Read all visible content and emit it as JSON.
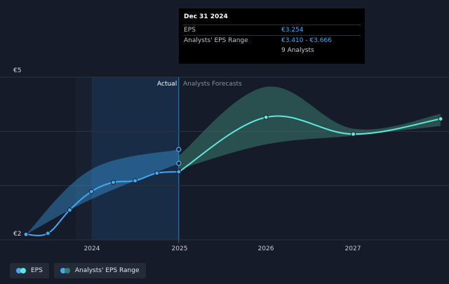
{
  "chart_data": {
    "type": "line",
    "y_tick_labels": [
      "€5",
      "€2"
    ],
    "x_ticks": [
      {
        "label": "2024",
        "value": 2024.0
      },
      {
        "label": "2025",
        "value": 2025.0
      },
      {
        "label": "2026",
        "value": 2026.0
      },
      {
        "label": "2027",
        "value": 2027.0
      }
    ],
    "xlim": [
      2023.0,
      2028.0
    ],
    "ylim": [
      2.0,
      5.0
    ],
    "zones": {
      "actual_label": "Actual",
      "forecast_label": "Analysts Forecasts",
      "divider_x": 2025.0
    },
    "series": [
      {
        "name": "EPS",
        "color": "#3fa9f5",
        "points": [
          {
            "x": 2023.25,
            "y": 2.1
          },
          {
            "x": 2023.5,
            "y": 2.12
          },
          {
            "x": 2023.75,
            "y": 2.55
          },
          {
            "x": 2024.0,
            "y": 2.89
          },
          {
            "x": 2024.25,
            "y": 3.06
          },
          {
            "x": 2024.5,
            "y": 3.09
          },
          {
            "x": 2024.75,
            "y": 3.23
          },
          {
            "x": 2025.0,
            "y": 3.254
          }
        ]
      },
      {
        "name": "EPS forecast",
        "color": "#5fe8dc",
        "points": [
          {
            "x": 2025.0,
            "y": 3.254
          },
          {
            "x": 2026.0,
            "y": 4.26
          },
          {
            "x": 2027.0,
            "y": 3.95
          },
          {
            "x": 2028.0,
            "y": 4.23
          }
        ]
      }
    ],
    "ranges": [
      {
        "name": "Analysts' EPS Range",
        "color": "#3fa9f5",
        "points": [
          {
            "x": 2023.25,
            "low": 2.1,
            "high": 2.1
          },
          {
            "x": 2024.0,
            "low": 2.75,
            "high": 3.3
          },
          {
            "x": 2025.0,
            "low": 3.41,
            "high": 3.666
          }
        ]
      },
      {
        "name": "Analysts' EPS Range forecast",
        "color": "#3a7a70",
        "points": [
          {
            "x": 2025.0,
            "low": 3.3,
            "high": 3.55
          },
          {
            "x": 2026.0,
            "low": 3.76,
            "high": 4.82
          },
          {
            "x": 2027.0,
            "low": 3.92,
            "high": 4.05
          },
          {
            "x": 2028.0,
            "low": 4.1,
            "high": 4.32
          }
        ]
      }
    ],
    "range_markers": [
      {
        "x": 2025.0,
        "y": 3.41
      },
      {
        "x": 2025.0,
        "y": 3.666
      }
    ],
    "grid": true,
    "legend_placement": "bottom-left"
  },
  "tooltip": {
    "date": "Dec 31 2024",
    "rows": [
      {
        "label": "EPS",
        "value": "€3.254"
      },
      {
        "label": "Analysts' EPS Range",
        "value": "€3.410 - €3.666"
      },
      {
        "label": "",
        "value": "9 Analysts"
      }
    ]
  },
  "legend": [
    {
      "label": "EPS",
      "colors": [
        "#3fa9f5",
        "#5fe8dc"
      ]
    },
    {
      "label": "Analysts' EPS Range",
      "colors": [
        "#3fa9f5",
        "#3a7a70"
      ]
    }
  ],
  "colors": {
    "background": "#151b28",
    "actual_zone": "#1b3a5c",
    "grid": "#2c3340"
  }
}
